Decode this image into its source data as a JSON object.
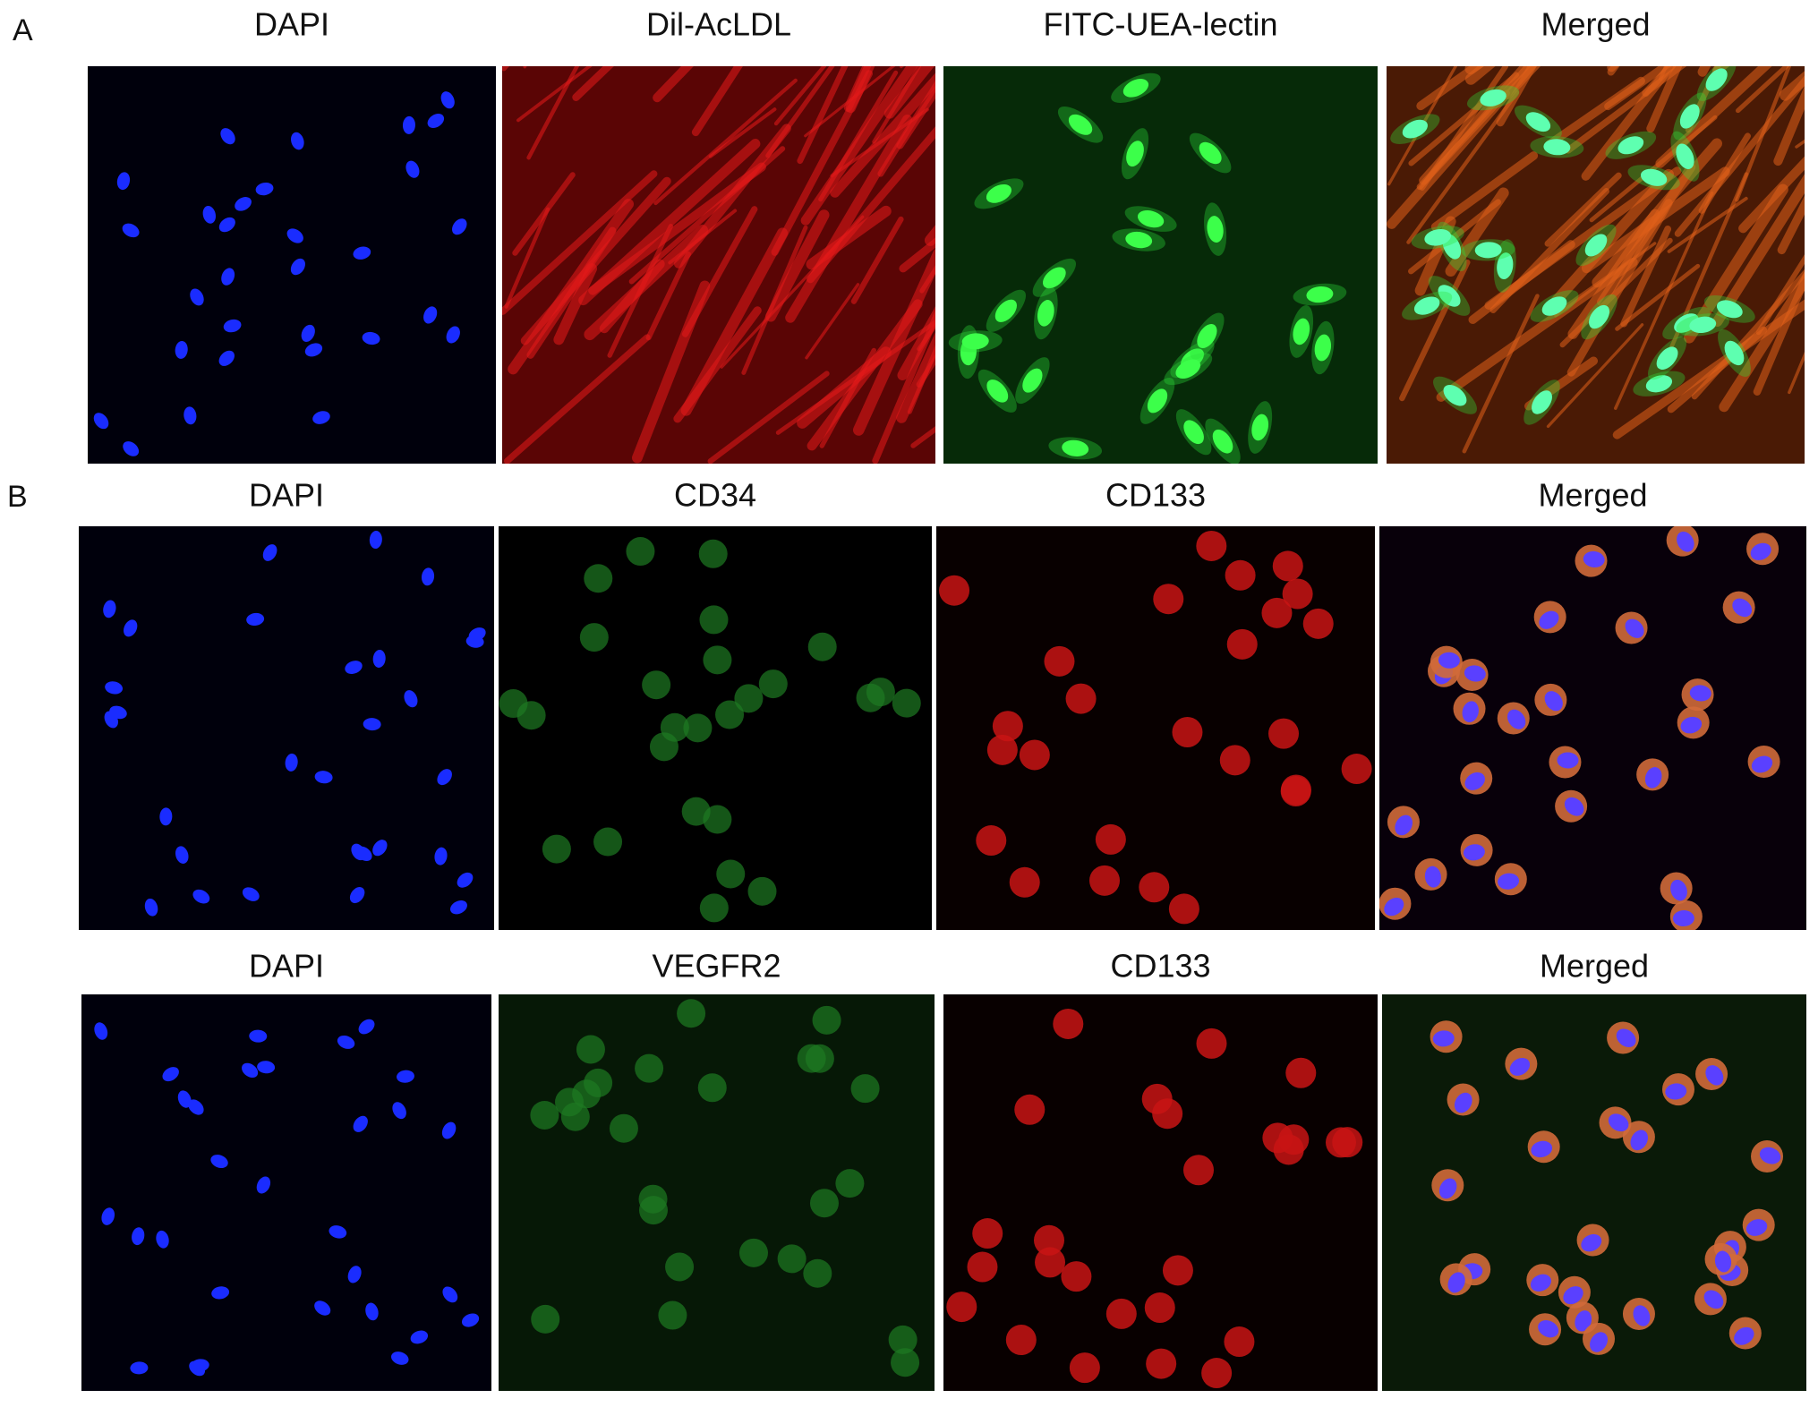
{
  "panel_a": {
    "label": "A",
    "titles": [
      "DAPI",
      "Dil-AcLDL",
      "FITC-UEA-lectin",
      "Merged"
    ]
  },
  "panel_b": {
    "label": "B",
    "rows": [
      {
        "titles": [
          "DAPI",
          "CD34",
          "CD133",
          "Merged"
        ]
      },
      {
        "titles": [
          "DAPI",
          "VEGFR2",
          "CD133",
          "Merged"
        ]
      }
    ]
  }
}
